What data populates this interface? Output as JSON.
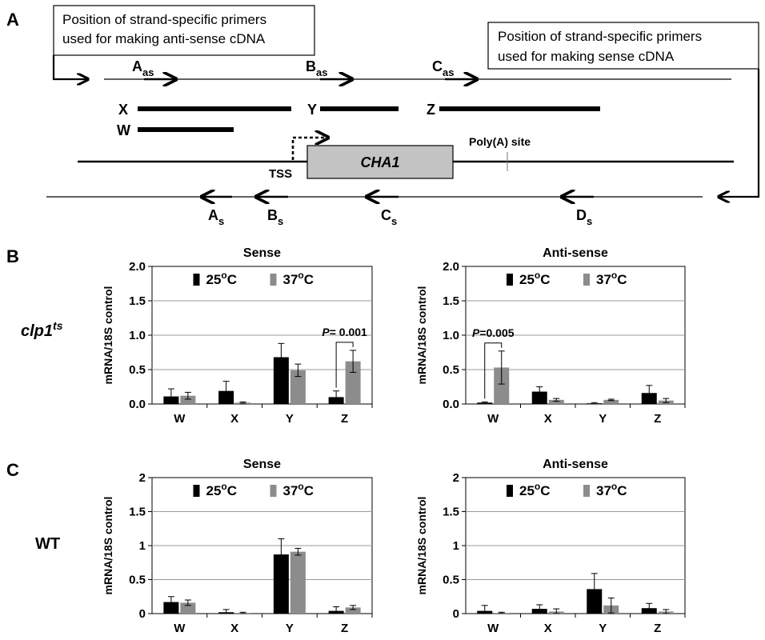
{
  "panel_labels": {
    "a": "A",
    "b": "B",
    "c": "C"
  },
  "diagram": {
    "antisense_note": {
      "line1": "Position of strand-specific primers",
      "line2": "used for making anti-sense cDNA"
    },
    "sense_note": {
      "line1": "Position of strand-specific primers",
      "line2": "used for making sense cDNA"
    },
    "top_primers": [
      {
        "base": "A",
        "sub": "as"
      },
      {
        "base": "B",
        "sub": "as"
      },
      {
        "base": "C",
        "sub": "as"
      }
    ],
    "bottom_primers": [
      {
        "base": "A",
        "sub": "s"
      },
      {
        "base": "B",
        "sub": "s"
      },
      {
        "base": "C",
        "sub": "s"
      },
      {
        "base": "D",
        "sub": "s"
      }
    ],
    "regions": [
      "X",
      "Y",
      "Z",
      "W"
    ],
    "gene": "CHA1",
    "tss": "TSS",
    "polya": "Poly(A) site"
  },
  "row_labels": {
    "b_main": "clp1",
    "b_sup": "ts",
    "c": "WT"
  },
  "chart_data": [
    {
      "id": "clp1-sense",
      "type": "bar",
      "title": "Sense",
      "ylabel": "mRNA/18S control",
      "ylim": [
        0,
        2.0
      ],
      "yticks": [
        "0.0",
        "0.5",
        "1.0",
        "1.5",
        "2.0"
      ],
      "grid": true,
      "legend_position": "top",
      "categories": [
        "W",
        "X",
        "Y",
        "Z"
      ],
      "series": [
        {
          "name": "25oC",
          "legend_base": "25",
          "legend_sup": "o",
          "legend_tail": "C",
          "color": "#000000",
          "values": [
            0.11,
            0.19,
            0.68,
            0.1
          ],
          "errors": [
            0.11,
            0.14,
            0.2,
            0.09
          ]
        },
        {
          "name": "37oC",
          "legend_base": "37",
          "legend_sup": "o",
          "legend_tail": "C",
          "color": "#8c8c8c",
          "values": [
            0.12,
            0.02,
            0.49,
            0.62
          ],
          "errors": [
            0.05,
            0.01,
            0.09,
            0.16
          ]
        }
      ],
      "annotations": [
        {
          "pval_italic": "P",
          "pval_rest": "= 0.001",
          "category_index": 3
        }
      ]
    },
    {
      "id": "clp1-antisense",
      "type": "bar",
      "title": "Anti-sense",
      "ylabel": "mRNA/18S control",
      "ylim": [
        0,
        2.0
      ],
      "yticks": [
        "0.0",
        "0.5",
        "1.0",
        "1.5",
        "2.0"
      ],
      "grid": true,
      "legend_position": "top",
      "categories": [
        "W",
        "X",
        "Y",
        "Z"
      ],
      "series": [
        {
          "name": "25oC",
          "legend_base": "25",
          "legend_sup": "o",
          "legend_tail": "C",
          "color": "#000000",
          "values": [
            0.02,
            0.18,
            0.01,
            0.16
          ],
          "errors": [
            0.01,
            0.07,
            0.01,
            0.11
          ]
        },
        {
          "name": "37oC",
          "legend_base": "37",
          "legend_sup": "o",
          "legend_tail": "C",
          "color": "#8c8c8c",
          "values": [
            0.53,
            0.06,
            0.06,
            0.05
          ],
          "errors": [
            0.24,
            0.02,
            0.01,
            0.03
          ]
        }
      ],
      "annotations": [
        {
          "pval_italic": "P",
          "pval_rest": "=0.005",
          "category_index": 0
        }
      ]
    },
    {
      "id": "wt-sense",
      "type": "bar",
      "title": "Sense",
      "ylabel": "mRNA/18S control",
      "ylim": [
        0,
        2
      ],
      "yticks": [
        "0",
        "0.5",
        "1",
        "1.5",
        "2"
      ],
      "grid": true,
      "legend_position": "top",
      "categories": [
        "W",
        "X",
        "Y",
        "Z"
      ],
      "series": [
        {
          "name": "25oC",
          "legend_base": "25",
          "legend_sup": "o",
          "legend_tail": "C",
          "color": "#000000",
          "values": [
            0.17,
            0.02,
            0.87,
            0.04
          ],
          "errors": [
            0.08,
            0.04,
            0.23,
            0.06
          ]
        },
        {
          "name": "37oC",
          "legend_base": "37",
          "legend_sup": "o",
          "legend_tail": "C",
          "color": "#8c8c8c",
          "values": [
            0.16,
            0.01,
            0.91,
            0.09
          ],
          "errors": [
            0.04,
            0.01,
            0.05,
            0.03
          ]
        }
      ],
      "annotations": []
    },
    {
      "id": "wt-antisense",
      "type": "bar",
      "title": "Anti-sense",
      "ylabel": "mRNA/18S control",
      "ylim": [
        0,
        2
      ],
      "yticks": [
        "0",
        "0.5",
        "1",
        "1.5",
        "2"
      ],
      "grid": true,
      "legend_position": "top",
      "categories": [
        "W",
        "X",
        "Y",
        "Z"
      ],
      "series": [
        {
          "name": "25oC",
          "legend_base": "25",
          "legend_sup": "o",
          "legend_tail": "C",
          "color": "#000000",
          "values": [
            0.04,
            0.07,
            0.36,
            0.08
          ],
          "errors": [
            0.08,
            0.06,
            0.23,
            0.07
          ]
        },
        {
          "name": "37oC",
          "legend_base": "37",
          "legend_sup": "o",
          "legend_tail": "C",
          "color": "#8c8c8c",
          "values": [
            0.01,
            0.03,
            0.12,
            0.03
          ],
          "errors": [
            0.01,
            0.04,
            0.11,
            0.03
          ]
        }
      ],
      "annotations": []
    }
  ]
}
